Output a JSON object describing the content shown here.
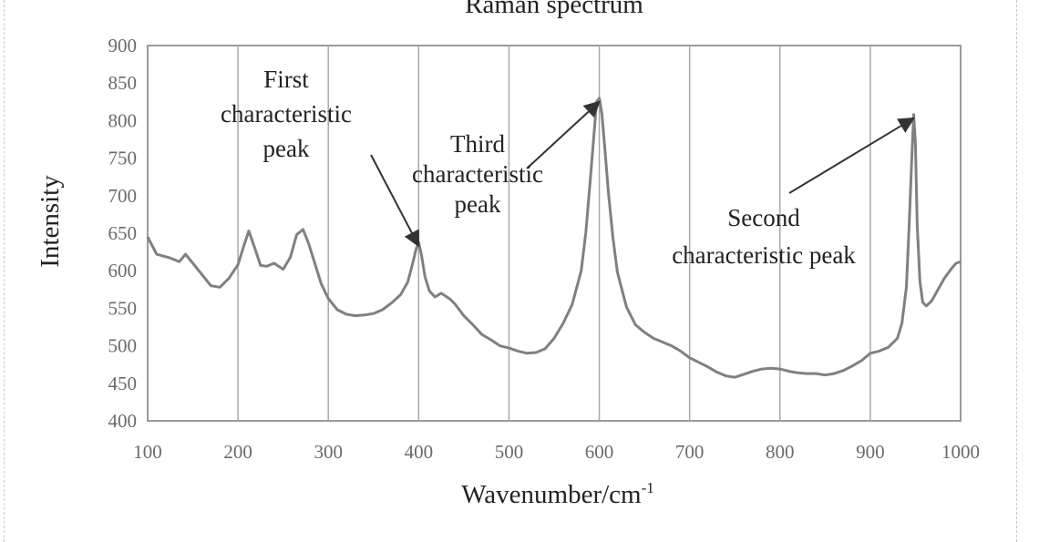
{
  "chart_data": {
    "type": "line",
    "title": "Raman spectrum",
    "xlabel": "Wavenumber/cm",
    "xlabel_superscript": "-1",
    "ylabel": "Intensity",
    "xlim": [
      100,
      1000
    ],
    "ylim": [
      400,
      900
    ],
    "x_ticks": [
      "100",
      "200",
      "300",
      "400",
      "500",
      "600",
      "700",
      "800",
      "900",
      "1000"
    ],
    "y_ticks": [
      "400",
      "450",
      "500",
      "550",
      "600",
      "650",
      "700",
      "750",
      "800",
      "850",
      "900"
    ],
    "grid": "vertical",
    "legend": "none",
    "line_color": "#808080",
    "series": [
      {
        "x": [
          100,
          110,
          125,
          135,
          142,
          150,
          160,
          170,
          180,
          190,
          200,
          207,
          212,
          218,
          225,
          232,
          240,
          250,
          258,
          265,
          272,
          278,
          285,
          292,
          300,
          310,
          320,
          330,
          340,
          350,
          360,
          370,
          380,
          388,
          393,
          397,
          400,
          403,
          407,
          412,
          418,
          425,
          435,
          440,
          450,
          460,
          470,
          480,
          490,
          500,
          510,
          520,
          530,
          540,
          550,
          560,
          570,
          580,
          585,
          590,
          594,
          597,
          600,
          603,
          606,
          610,
          615,
          620,
          630,
          640,
          650,
          660,
          670,
          680,
          690,
          700,
          710,
          720,
          730,
          740,
          750,
          760,
          770,
          780,
          790,
          800,
          810,
          820,
          830,
          840,
          850,
          860,
          870,
          880,
          890,
          900,
          910,
          920,
          930,
          935,
          940,
          943,
          946,
          948,
          950,
          952,
          955,
          958,
          962,
          968,
          975,
          982,
          990,
          995,
          1000
        ],
        "y": [
          645,
          622,
          617,
          612,
          622,
          610,
          595,
          580,
          578,
          590,
          608,
          635,
          653,
          632,
          607,
          606,
          610,
          602,
          618,
          648,
          655,
          637,
          610,
          583,
          563,
          548,
          542,
          540,
          541,
          543,
          548,
          557,
          568,
          585,
          608,
          628,
          638,
          622,
          592,
          573,
          565,
          570,
          562,
          556,
          540,
          528,
          515,
          508,
          500,
          497,
          493,
          490,
          491,
          496,
          510,
          530,
          555,
          600,
          650,
          720,
          780,
          825,
          830,
          808,
          765,
          705,
          645,
          598,
          552,
          528,
          518,
          510,
          505,
          500,
          493,
          484,
          478,
          472,
          465,
          460,
          458,
          462,
          466,
          469,
          470,
          469,
          466,
          464,
          463,
          463,
          461,
          463,
          467,
          473,
          480,
          490,
          493,
          498,
          510,
          530,
          578,
          660,
          752,
          808,
          770,
          660,
          585,
          558,
          553,
          560,
          575,
          590,
          603,
          610,
          612
        ]
      }
    ],
    "annotations": [
      {
        "lines": [
          "First",
          "characteristic",
          "peak"
        ],
        "target_x": 400,
        "target_y": 638
      },
      {
        "lines": [
          "Third",
          "characteristic",
          "peak"
        ],
        "target_x": 600,
        "target_y": 830
      },
      {
        "lines": [
          "Second",
          "characteristic peak"
        ],
        "target_x": 948,
        "target_y": 808
      }
    ]
  }
}
